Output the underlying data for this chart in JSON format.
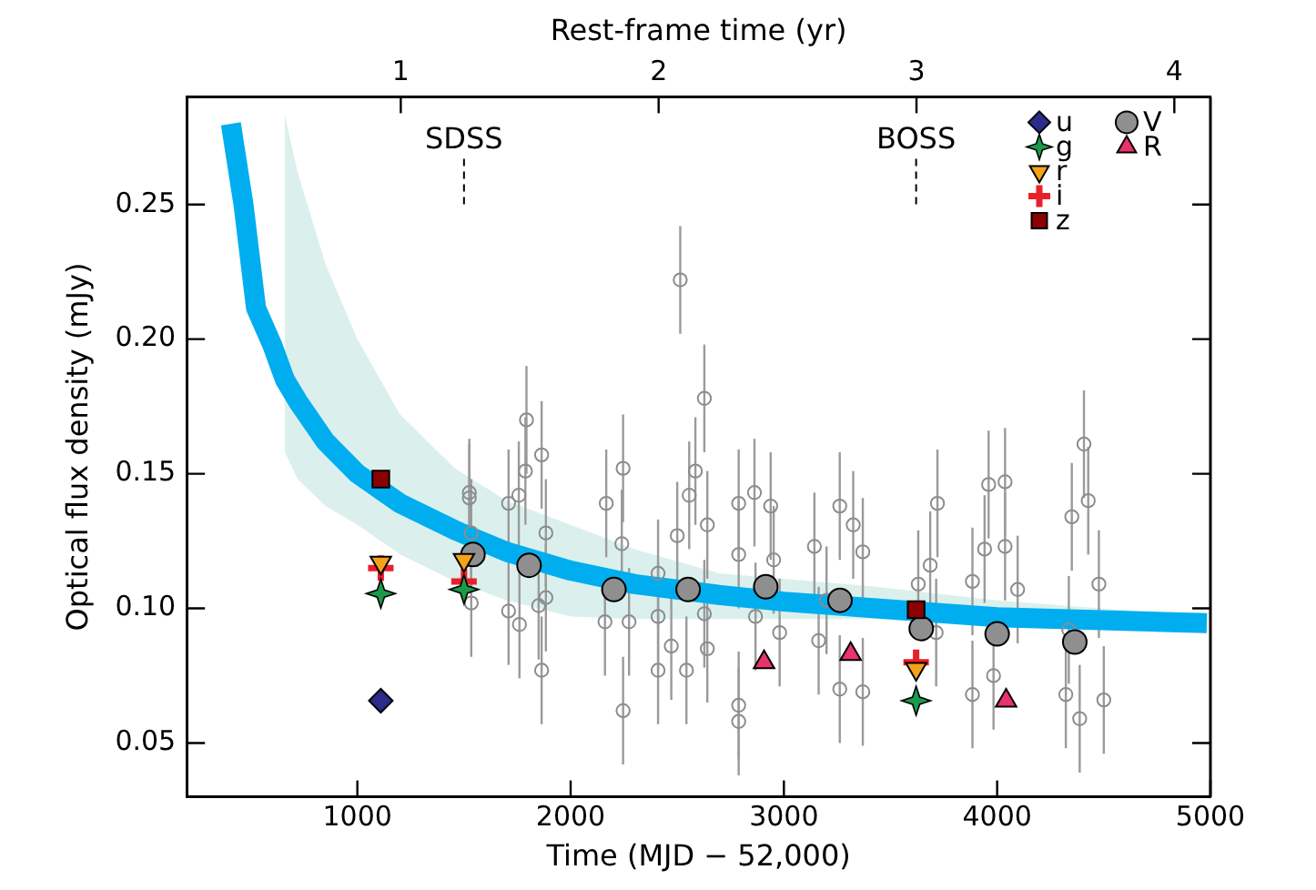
{
  "chart_data": {
    "type": "scatter",
    "xlabel": "Time (MJD − 52,000)",
    "ylabel": "Optical flux density (mJy)",
    "x2label": "Rest-frame time (yr)",
    "xlim": [
      200,
      5000
    ],
    "xticks": [
      1000,
      2000,
      3000,
      4000,
      5000
    ],
    "x2lim": [
      0.17,
      4.14
    ],
    "x2ticks": [
      1,
      2,
      3,
      4
    ],
    "ylim": [
      0.03,
      0.29
    ],
    "yticks": [
      {
        "value": 0.05,
        "label": "0.05"
      },
      {
        "value": 0.1,
        "label": "0.10"
      },
      {
        "value": 0.15,
        "label": "0.15"
      },
      {
        "value": 0.2,
        "label": "0.20"
      },
      {
        "value": 0.25,
        "label": "0.25"
      }
    ],
    "legend": "top right",
    "grid": false,
    "ref_lines": [
      {
        "axis": "x",
        "value": 1500,
        "label": "SDSS",
        "line_style": "dashed"
      },
      {
        "axis": "x",
        "value": 3620,
        "label": "BOSS",
        "line_style": "dashed"
      }
    ],
    "series": [
      {
        "type": "line",
        "color": "#00aeef",
        "x": [
          407,
          466,
          525,
          600,
          660,
          720,
          850,
          1000,
          1200,
          1458,
          1700,
          2000,
          2300,
          2695,
          3000,
          3432,
          4000,
          4983
        ],
        "values": [
          0.28,
          0.25,
          0.2115,
          0.198,
          0.185,
          0.177,
          0.162,
          0.15,
          0.139,
          0.129,
          0.121,
          0.114,
          0.109,
          0.105,
          0.1025,
          0.1,
          0.0967,
          0.0945
        ],
        "lower": [
          null,
          null,
          null,
          null,
          0.158,
          0.148,
          0.138,
          0.131,
          0.12,
          0.11,
          0.103,
          0.097,
          0.096,
          0.096,
          0.096,
          0.096,
          0.094,
          0.093
        ],
        "upper": [
          null,
          null,
          null,
          null,
          0.283,
          0.262,
          0.228,
          0.2,
          0.172,
          0.152,
          0.14,
          0.131,
          0.122,
          0.113,
          0.111,
          0.108,
          0.103,
          0.097
        ]
      },
      {
        "type": "scatter",
        "marker": "circle",
        "color": "#8c8c8c",
        "x": [
          1525,
          1525,
          1534,
          1534,
          1709,
          1709,
          1757,
          1760,
          1793,
          1788,
          1864,
          1864,
          1884,
          1850,
          1884,
          2167,
          2161,
          2246,
          2246,
          2274,
          2240,
          2410,
          2410,
          2410,
          2514,
          2627,
          2472,
          2543,
          2585,
          2641,
          2641,
          2500,
          2556,
          2627,
          2788,
          2788,
          2788,
          2788,
          2862,
          2867,
          2938,
          2980,
          2952,
          3143,
          3163,
          3262,
          3262,
          3325,
          3370,
          3370,
          3200,
          3630,
          3686,
          3720,
          3714,
          3884,
          3884,
          3960,
          4037,
          4037,
          4096,
          3983,
          3941,
          4322,
          4350,
          4407,
          4427,
          4387,
          4500,
          4477,
          4336
        ],
        "values": [
          0.143,
          0.141,
          0.128,
          0.102,
          0.139,
          0.099,
          0.142,
          0.094,
          0.17,
          0.151,
          0.157,
          0.077,
          0.128,
          0.101,
          0.104,
          0.139,
          0.095,
          0.152,
          0.062,
          0.095,
          0.124,
          0.113,
          0.077,
          0.097,
          0.222,
          0.178,
          0.086,
          0.077,
          0.151,
          0.131,
          0.085,
          0.127,
          0.142,
          0.098,
          0.139,
          0.064,
          0.058,
          0.12,
          0.143,
          0.097,
          0.138,
          0.091,
          0.118,
          0.123,
          0.088,
          0.138,
          0.07,
          0.131,
          0.121,
          0.069,
          0.103,
          0.109,
          0.116,
          0.139,
          0.091,
          0.11,
          0.068,
          0.146,
          0.147,
          0.123,
          0.107,
          0.075,
          0.122,
          0.068,
          0.134,
          0.161,
          0.14,
          0.059,
          0.066,
          0.109,
          0.092
        ],
        "errors": [
          0.02,
          0.02,
          0.02,
          0.02,
          0.02,
          0.02,
          0.02,
          0.02,
          0.02,
          0.02,
          0.02,
          0.02,
          0.02,
          0.02,
          0.02,
          0.02,
          0.02,
          0.02,
          0.02,
          0.02,
          0.02,
          0.02,
          0.02,
          0.02,
          0.02,
          0.02,
          0.02,
          0.02,
          0.02,
          0.02,
          0.02,
          0.02,
          0.02,
          0.02,
          0.02,
          0.02,
          0.02,
          0.02,
          0.02,
          0.02,
          0.02,
          0.02,
          0.02,
          0.02,
          0.02,
          0.02,
          0.02,
          0.02,
          0.02,
          0.02,
          0.02,
          0.02,
          0.02,
          0.02,
          0.02,
          0.02,
          0.02,
          0.02,
          0.02,
          0.02,
          0.02,
          0.02,
          0.02,
          0.02,
          0.02,
          0.02,
          0.02,
          0.02,
          0.02,
          0.02,
          0.02
        ]
      },
      {
        "type": "scatter",
        "name": "u",
        "marker": "diamond",
        "color": "#2b2b8c",
        "x": [
          1110
        ],
        "values": [
          0.0657
        ]
      },
      {
        "type": "scatter",
        "name": "g",
        "marker": "star",
        "color": "#1a9a4a",
        "x": [
          1110,
          1500,
          3620
        ],
        "values": [
          0.1055,
          0.107,
          0.0657
        ]
      },
      {
        "type": "scatter",
        "name": "r",
        "marker": "triangle_down",
        "color": "#f5a21b",
        "x": [
          1110,
          1500,
          3620
        ],
        "values": [
          0.117,
          0.118,
          0.0775
        ]
      },
      {
        "type": "scatter",
        "name": "i",
        "marker": "cross",
        "color": "#e8202a",
        "x": [
          1110,
          1500,
          3620
        ],
        "values": [
          0.115,
          0.11,
          0.08
        ]
      },
      {
        "type": "scatter",
        "name": "z",
        "marker": "square",
        "color": "#8b0000",
        "x": [
          1110,
          3620
        ],
        "values": [
          0.148,
          0.0995
        ]
      },
      {
        "type": "scatter",
        "name": "V",
        "marker": "circle",
        "color": "#8f8f8f",
        "x": [
          1542,
          1805,
          2203,
          2551,
          2915,
          3263,
          3644,
          4000,
          4364
        ],
        "values": [
          0.12,
          0.116,
          0.107,
          0.107,
          0.108,
          0.103,
          0.0925,
          0.0905,
          0.0875
        ],
        "errors": [
          0.004,
          0.003,
          0.003,
          0.003,
          0.003,
          0.003,
          0.003,
          0.003,
          0.003
        ]
      },
      {
        "type": "scatter",
        "name": "R",
        "marker": "triangle",
        "color": "#e8336b",
        "x": [
          2907,
          3313,
          4042
        ],
        "values": [
          0.08,
          0.083,
          0.0657
        ]
      }
    ]
  }
}
